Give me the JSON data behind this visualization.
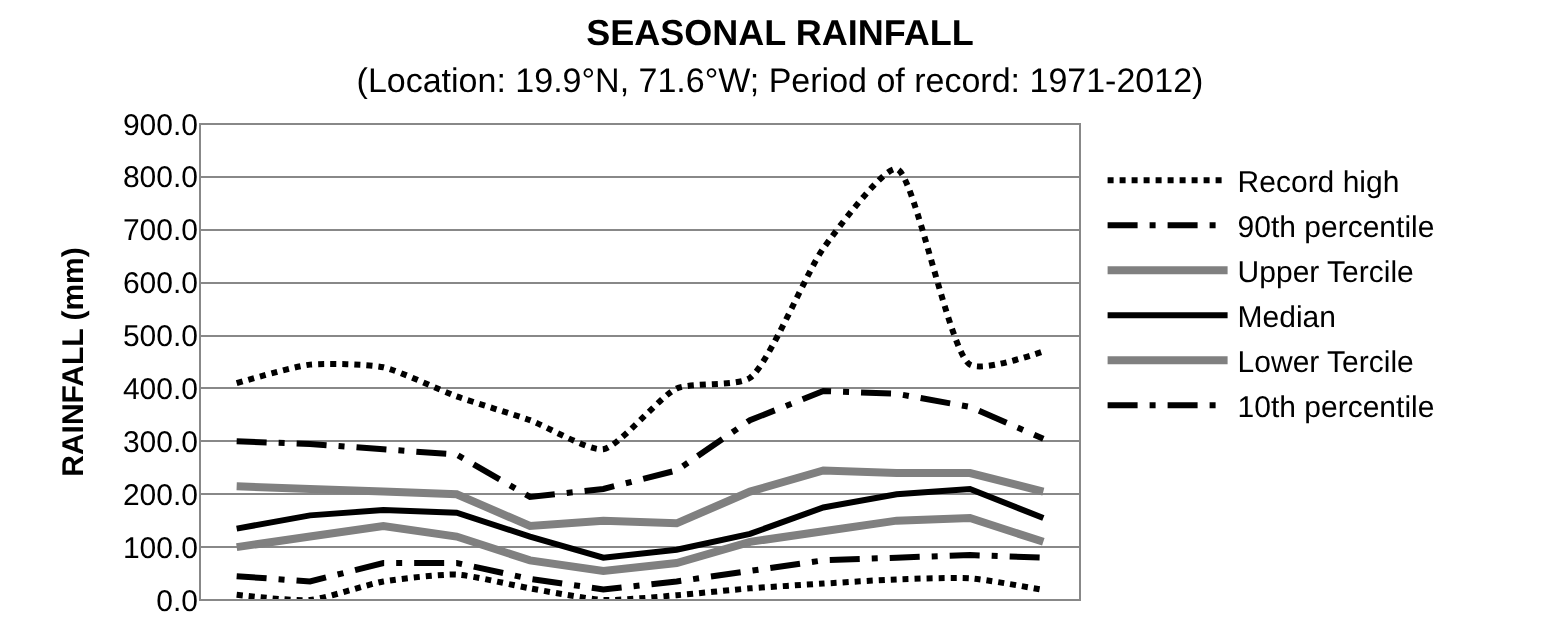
{
  "chart_data": {
    "type": "line",
    "title": "SEASONAL RAINFALL",
    "subtitle": "(Location: 19.9°N, 71.6°W; Period of record: 1971-2012)",
    "ylabel": "RAINFALL (mm)",
    "categories": [
      null,
      null,
      null,
      null,
      null,
      null,
      null,
      null,
      null,
      null,
      null,
      null
    ],
    "ylim": [
      0,
      900
    ],
    "yticks": [
      {
        "value": 0,
        "label": "0.0"
      },
      {
        "value": 100,
        "label": "100.0"
      },
      {
        "value": 200,
        "label": "200.0"
      },
      {
        "value": 300,
        "label": "300.0"
      },
      {
        "value": 400,
        "label": "400.0"
      },
      {
        "value": 500,
        "label": "500.0"
      },
      {
        "value": 600,
        "label": "600.0"
      },
      {
        "value": 700,
        "label": "700.0"
      },
      {
        "value": 800,
        "label": "800.0"
      },
      {
        "value": 900,
        "label": "900.0"
      }
    ],
    "grid": "y",
    "legend": "right",
    "marker": "none",
    "series": [
      {
        "name": "Record high",
        "color": "#000000",
        "line_style": "dotted",
        "values": [
          410,
          445,
          440,
          385,
          340,
          285,
          400,
          420,
          665,
          815,
          445,
          470
        ]
      },
      {
        "name": "90th percentile",
        "color": "#000000",
        "line_style": "dashed",
        "values": [
          300,
          295,
          285,
          275,
          195,
          210,
          245,
          340,
          395,
          390,
          365,
          305
        ]
      },
      {
        "name": "Upper Tercile",
        "color": "#808080",
        "line_style": "solid",
        "values": [
          215,
          210,
          205,
          200,
          140,
          150,
          145,
          205,
          245,
          240,
          240,
          205
        ]
      },
      {
        "name": "Median",
        "color": "#000000",
        "line_style": "solid",
        "values": [
          135,
          160,
          170,
          165,
          120,
          80,
          95,
          125,
          175,
          200,
          210,
          155
        ]
      },
      {
        "name": "Lower Tercile",
        "color": "#808080",
        "line_style": "solid",
        "values": [
          100,
          120,
          140,
          120,
          75,
          55,
          70,
          110,
          130,
          150,
          155,
          110
        ]
      },
      {
        "name": "10th percentile",
        "color": "#000000",
        "line_style": "dashed",
        "values": [
          45,
          35,
          70,
          70,
          40,
          20,
          35,
          55,
          75,
          80,
          85,
          80
        ]
      },
      {
        "color": "#000000",
        "line_style": "dotted",
        "values": [
          10,
          0,
          35,
          48,
          22,
          0,
          9,
          22,
          31,
          39,
          41,
          19
        ]
      }
    ]
  }
}
